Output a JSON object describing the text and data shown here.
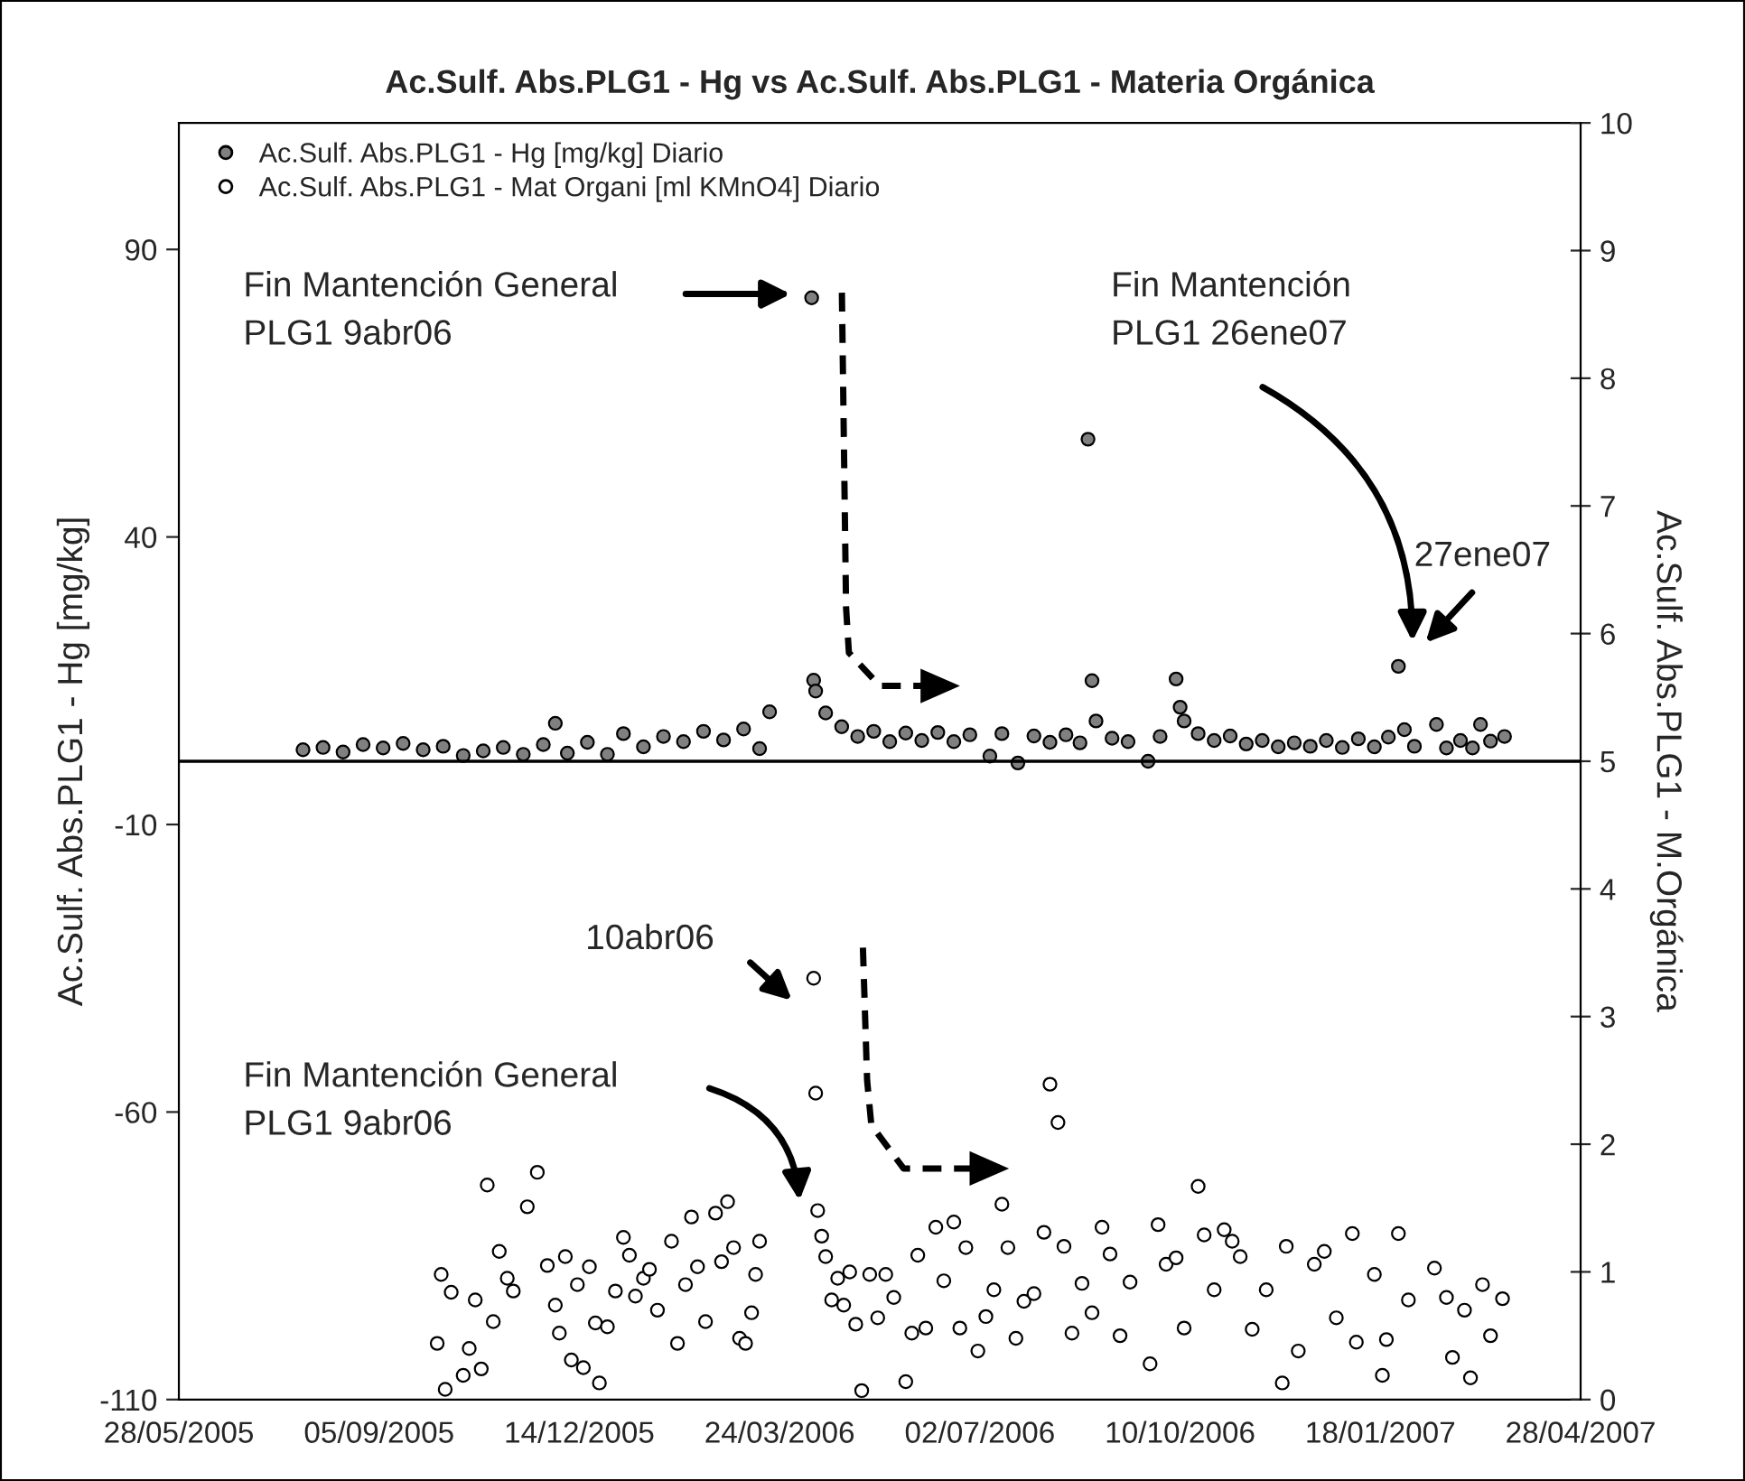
{
  "chart_data": {
    "type": "scatter",
    "title": "Ac.Sulf. Abs.PLG1 - Hg vs Ac.Sulf. Abs.PLG1 - Materia Orgánica",
    "ylabel": "Ac.Sulf. Abs.PLG1 - Hg [mg/kg]",
    "y2label": "Ac.Sulf. Abs.PLG1 - M.Orgánica",
    "xlim": [
      "2005-05-28",
      "2007-04-28"
    ],
    "xticks": [
      {
        "value": "2005-05-28",
        "label": "28/05/2005"
      },
      {
        "value": "2005-09-05",
        "label": "05/09/2005"
      },
      {
        "value": "2005-12-14",
        "label": "14/12/2005"
      },
      {
        "value": "2006-03-24",
        "label": "24/03/2006"
      },
      {
        "value": "2006-07-02",
        "label": "02/07/2006"
      },
      {
        "value": "2006-10-10",
        "label": "10/10/2006"
      },
      {
        "value": "2007-01-18",
        "label": "18/01/2007"
      },
      {
        "value": "2007-04-28",
        "label": "28/04/2007"
      }
    ],
    "ylim": [
      -110,
      112
    ],
    "yticks": [
      -110,
      -60,
      -10,
      40,
      90
    ],
    "y2lim": [
      0,
      10
    ],
    "y2ticks": [
      0,
      1,
      2,
      3,
      4,
      5,
      6,
      7,
      8,
      9,
      10
    ],
    "grid": false,
    "legend": "top left",
    "marker": "circle",
    "ref_lines": [
      {
        "axis": "y2",
        "value": 5,
        "color": "#000000"
      }
    ],
    "annotations": [
      "Fin Mantención General\nPLG1 9abr06",
      "Fin Mantención\nPLG1 26ene07",
      "27ene07",
      "10abr06",
      "Fin Mantención General\nPLG1 9abr06"
    ],
    "series": [
      {
        "name": "Ac.Sulf. Abs.PLG1 - Hg [mg/kg] Diario",
        "color": "#808080",
        "x": [
          "2005-07-29",
          "2005-08-08",
          "2005-08-18",
          "2005-08-28",
          "2005-09-07",
          "2005-09-17",
          "2005-09-27",
          "2005-10-07",
          "2005-10-17",
          "2005-10-27",
          "2005-11-06",
          "2005-11-16",
          "2005-11-26",
          "2005-12-02",
          "2005-12-08",
          "2005-12-18",
          "2005-12-28",
          "2006-01-05",
          "2006-01-15",
          "2006-01-25",
          "2006-02-04",
          "2006-02-14",
          "2006-02-24",
          "2006-03-06",
          "2006-03-14",
          "2006-03-19",
          "2006-04-09",
          "2006-04-10",
          "2006-04-11",
          "2006-04-16",
          "2006-04-24",
          "2006-05-02",
          "2006-05-10",
          "2006-05-18",
          "2006-05-26",
          "2006-06-03",
          "2006-06-11",
          "2006-06-19",
          "2006-06-27",
          "2006-07-07",
          "2006-07-13",
          "2006-07-21",
          "2006-07-29",
          "2006-08-06",
          "2006-08-14",
          "2006-08-21",
          "2006-08-25",
          "2006-08-27",
          "2006-08-29",
          "2006-09-06",
          "2006-09-14",
          "2006-09-24",
          "2006-09-30",
          "2006-10-08",
          "2006-10-10",
          "2006-10-12",
          "2006-10-19",
          "2006-10-27",
          "2006-11-04",
          "2006-11-12",
          "2006-11-20",
          "2006-11-28",
          "2006-12-06",
          "2006-12-14",
          "2006-12-22",
          "2006-12-30",
          "2007-01-07",
          "2007-01-15",
          "2007-01-22",
          "2007-01-27",
          "2007-01-30",
          "2007-02-04",
          "2007-02-15",
          "2007-02-20",
          "2007-02-27",
          "2007-03-05",
          "2007-03-09",
          "2007-03-14",
          "2007-03-21"
        ],
        "values": [
          3.0,
          3.4,
          2.6,
          3.9,
          3.3,
          4.1,
          3.0,
          3.6,
          2.0,
          2.8,
          3.4,
          2.2,
          3.9,
          7.6,
          2.4,
          4.3,
          2.2,
          5.8,
          3.5,
          5.3,
          4.4,
          6.2,
          4.7,
          6.6,
          3.2,
          9.6,
          81.6,
          15.1,
          13.2,
          9.4,
          7.0,
          5.3,
          6.2,
          4.4,
          5.9,
          4.6,
          6.0,
          4.4,
          5.6,
          1.9,
          5.8,
          0.7,
          5.4,
          4.3,
          5.6,
          4.2,
          57,
          15,
          8,
          5.0,
          4.4,
          1.0,
          5.3,
          15.3,
          10.4,
          8.0,
          5.8,
          4.6,
          5.4,
          4.0,
          4.6,
          3.5,
          4.2,
          3.6,
          4.6,
          3.4,
          4.9,
          3.5,
          5.2,
          17.5,
          6.5,
          3.6,
          7.4,
          3.3,
          4.6,
          3.3,
          7.4,
          4.5,
          5.3
        ]
      },
      {
        "name": "Ac.Sulf. Abs.PLG1 - Mat Organi [ml KMnO4] Diario",
        "color": "#ffffff",
        "axis": "y2",
        "x": [
          "2005-10-04",
          "2005-10-06",
          "2005-10-08",
          "2005-10-11",
          "2005-10-17",
          "2005-10-20",
          "2005-10-23",
          "2005-10-26",
          "2005-10-29",
          "2005-11-01",
          "2005-11-04",
          "2005-11-08",
          "2005-11-11",
          "2005-11-18",
          "2005-11-23",
          "2005-11-28",
          "2005-12-02",
          "2005-12-04",
          "2005-12-07",
          "2005-12-10",
          "2005-12-13",
          "2005-12-16",
          "2005-12-19",
          "2005-12-22",
          "2005-12-24",
          "2005-12-28",
          "2006-01-01",
          "2006-01-05",
          "2006-01-08",
          "2006-01-11",
          "2006-01-15",
          "2006-01-18",
          "2006-01-22",
          "2006-01-29",
          "2006-02-01",
          "2006-02-05",
          "2006-02-08",
          "2006-02-11",
          "2006-02-15",
          "2006-02-20",
          "2006-02-23",
          "2006-02-26",
          "2006-03-01",
          "2006-03-04",
          "2006-03-07",
          "2006-03-10",
          "2006-03-12",
          "2006-03-14",
          "2006-04-10",
          "2006-04-11",
          "2006-04-12",
          "2006-04-14",
          "2006-04-16",
          "2006-04-19",
          "2006-04-22",
          "2006-04-25",
          "2006-04-28",
          "2006-05-01",
          "2006-05-04",
          "2006-05-08",
          "2006-05-12",
          "2006-05-16",
          "2006-05-20",
          "2006-05-26",
          "2006-05-29",
          "2006-06-01",
          "2006-06-05",
          "2006-06-10",
          "2006-06-14",
          "2006-06-19",
          "2006-06-22",
          "2006-06-25",
          "2006-07-01",
          "2006-07-05",
          "2006-07-09",
          "2006-07-13",
          "2006-07-16",
          "2006-07-20",
          "2006-07-24",
          "2006-07-29",
          "2006-08-03",
          "2006-08-06",
          "2006-08-10",
          "2006-08-13",
          "2006-08-17",
          "2006-08-22",
          "2006-08-27",
          "2006-09-01",
          "2006-09-05",
          "2006-09-10",
          "2006-09-15",
          "2006-09-25",
          "2006-09-29",
          "2006-10-03",
          "2006-10-08",
          "2006-10-12",
          "2006-10-19",
          "2006-10-22",
          "2006-10-27",
          "2006-11-01",
          "2006-11-05",
          "2006-11-09",
          "2006-11-15",
          "2006-11-22",
          "2006-11-30",
          "2006-12-02",
          "2006-12-08",
          "2006-12-16",
          "2006-12-21",
          "2006-12-27",
          "2007-01-04",
          "2007-01-06",
          "2007-01-15",
          "2007-01-19",
          "2007-01-21",
          "2007-01-27",
          "2007-02-01",
          "2007-02-14",
          "2007-02-20",
          "2007-02-23",
          "2007-03-01",
          "2007-03-04",
          "2007-03-10",
          "2007-03-14",
          "2007-03-20"
        ],
        "values": [
          0.44,
          0.98,
          0.08,
          0.84,
          0.19,
          0.4,
          0.78,
          0.24,
          1.68,
          0.61,
          1.16,
          0.95,
          0.85,
          1.51,
          1.78,
          1.05,
          0.74,
          0.52,
          1.12,
          0.31,
          0.9,
          0.25,
          1.04,
          0.6,
          0.13,
          0.57,
          0.85,
          1.27,
          1.13,
          0.81,
          0.95,
          1.02,
          0.7,
          1.24,
          0.44,
          0.9,
          1.43,
          1.04,
          0.61,
          1.46,
          1.08,
          1.55,
          1.19,
          0.48,
          0.44,
          0.68,
          0.98,
          1.24,
          3.3,
          2.4,
          1.48,
          1.28,
          1.12,
          0.78,
          0.95,
          0.74,
          1.0,
          0.59,
          0.07,
          0.98,
          0.64,
          0.98,
          0.8,
          0.14,
          0.52,
          1.13,
          0.56,
          1.35,
          0.93,
          1.39,
          0.56,
          1.19,
          0.38,
          0.65,
          0.86,
          1.53,
          1.19,
          0.48,
          0.77,
          0.83,
          1.31,
          2.47,
          2.17,
          1.2,
          0.52,
          0.91,
          0.68,
          1.35,
          1.14,
          0.5,
          0.92,
          0.28,
          1.37,
          1.06,
          1.11,
          0.56,
          1.67,
          1.29,
          0.86,
          1.33,
          1.24,
          1.12,
          0.55,
          0.86,
          0.13,
          1.2,
          0.38,
          1.06,
          1.16,
          0.64,
          1.3,
          0.45,
          0.98,
          0.19,
          0.47,
          1.3,
          0.78,
          1.03,
          0.8,
          0.33,
          0.7,
          0.17,
          0.9,
          0.5,
          0.79
        ]
      }
    ]
  }
}
